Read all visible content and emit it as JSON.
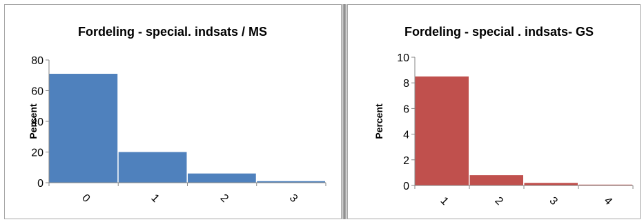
{
  "chart_data": [
    {
      "type": "bar",
      "title": "Fordeling - special. indsats / MS",
      "xlabel": "",
      "ylabel": "Percent",
      "categories": [
        "0",
        "1",
        "2",
        "3"
      ],
      "values": [
        71,
        20,
        6,
        1
      ],
      "ylim": [
        0,
        80
      ],
      "yticks": [
        0,
        20,
        40,
        60,
        80
      ],
      "bar_color": "#4F81BD",
      "grid": false,
      "legend": "none"
    },
    {
      "type": "bar",
      "title": "Fordeling - special . indsats- GS",
      "xlabel": "",
      "ylabel": "Percent",
      "categories": [
        "1",
        "2",
        "3",
        "4"
      ],
      "values": [
        8.5,
        0.8,
        0.2,
        0.03
      ],
      "ylim": [
        0,
        10
      ],
      "yticks": [
        0,
        2,
        4,
        6,
        8,
        10
      ],
      "bar_color": "#C0504D",
      "grid": false,
      "legend": "none"
    }
  ]
}
